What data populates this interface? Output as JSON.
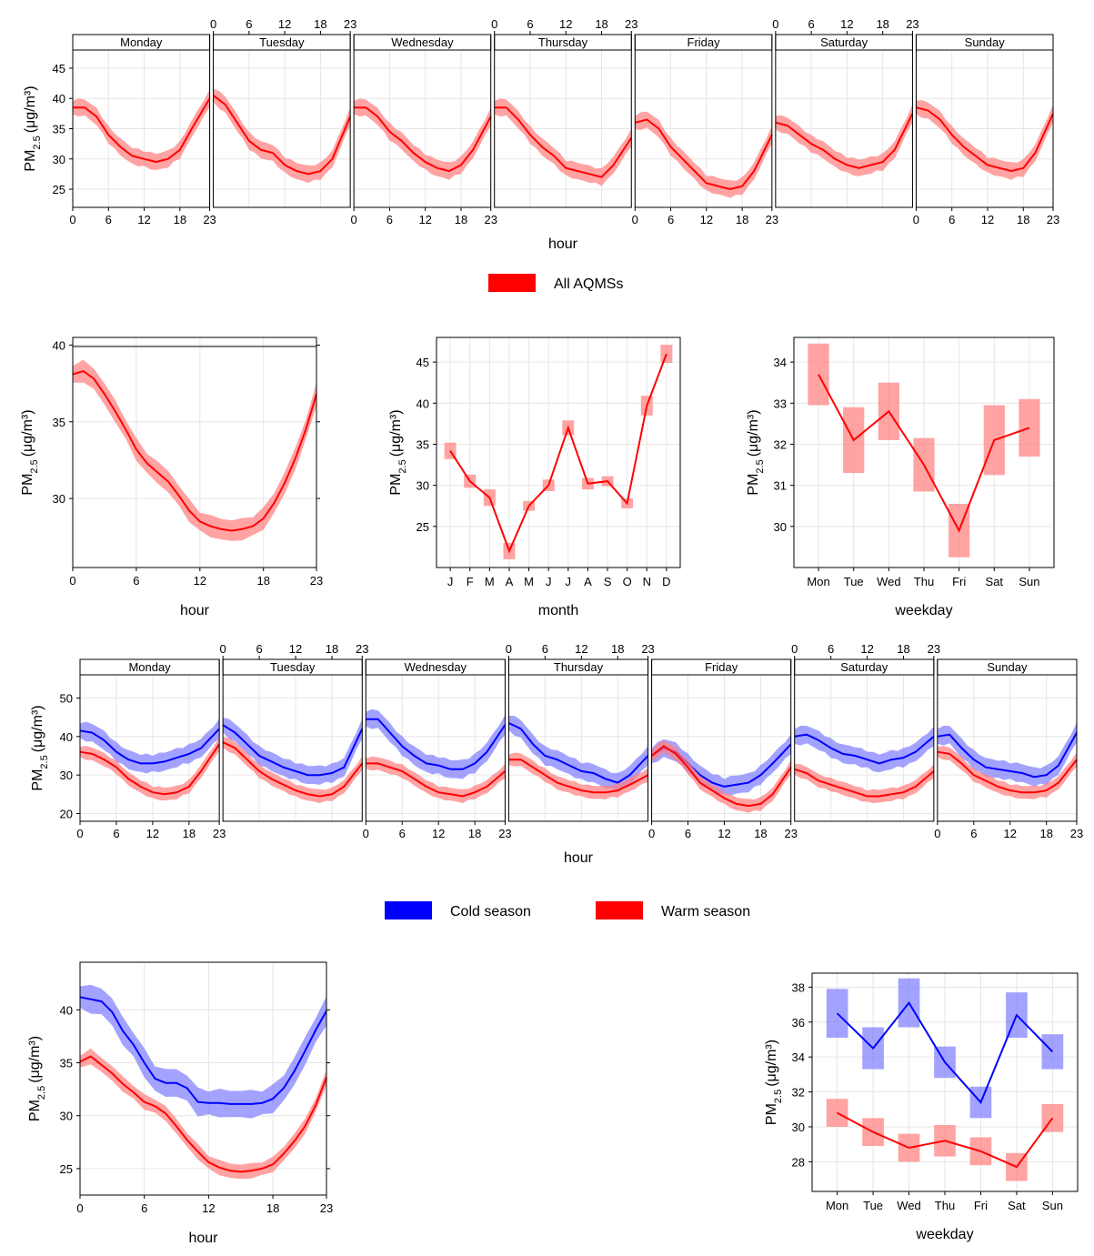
{
  "colors": {
    "red_line": "#ff0000",
    "red_band": "#ff8080",
    "blue_line": "#0000ff",
    "blue_band": "#8080ff",
    "grid": "#e6e6e6"
  },
  "legend_top": {
    "items": [
      {
        "label": "All AQMSs",
        "color": "#ff0000"
      }
    ]
  },
  "legend_mid": {
    "items": [
      {
        "label": "Cold season",
        "color": "#0000ff"
      },
      {
        "label": "Warm season",
        "color": "#ff0000"
      }
    ]
  },
  "chart_data": [
    {
      "type": "line",
      "panel": "hour-weekday-all",
      "xlabel": "hour",
      "ylabel": "PM2.5 (μg/m³)",
      "x_ticks": [
        0,
        6,
        12,
        18,
        23
      ],
      "y_ticks": [
        25,
        30,
        35,
        40,
        45
      ],
      "ylim": [
        22,
        48
      ],
      "days": [
        "Monday",
        "Tuesday",
        "Wednesday",
        "Thursday",
        "Friday",
        "Saturday",
        "Sunday"
      ],
      "series": [
        {
          "name": "All AQMSs",
          "color": "#ff0000",
          "points_x": [
            0,
            2,
            4,
            6,
            8,
            10,
            12,
            14,
            16,
            18,
            20,
            23
          ],
          "values": [
            [
              38.5,
              38.5,
              37,
              34,
              32,
              30.5,
              30,
              29.5,
              30,
              31.5,
              35,
              40
            ],
            [
              40.5,
              39,
              36,
              33,
              31.5,
              31,
              29,
              28,
              27.5,
              28,
              30,
              37
            ],
            [
              38.5,
              38.5,
              37,
              34.5,
              33,
              31,
              29.5,
              28.5,
              28,
              29,
              31.5,
              37
            ],
            [
              38.5,
              38.5,
              36.5,
              34,
              32,
              30.5,
              28.5,
              28,
              27.5,
              27,
              29,
              33.5
            ],
            [
              36,
              36.5,
              35,
              32,
              30,
              28,
              26,
              25.5,
              25,
              25.5,
              28,
              34
            ],
            [
              36,
              35.5,
              34,
              32.5,
              31.5,
              30,
              29,
              28.5,
              29,
              29.5,
              31.5,
              37.5
            ],
            [
              38.5,
              38,
              36.5,
              34,
              32,
              30.5,
              29,
              28.5,
              28,
              28.5,
              31,
              37.5
            ]
          ],
          "ci": 2.6
        }
      ]
    },
    {
      "type": "line",
      "panel": "hour-all",
      "xlabel": "hour",
      "ylabel": "PM2.5 (μg/m³)",
      "x_ticks": [
        0,
        6,
        12,
        18,
        23
      ],
      "y_ticks": [
        30,
        35,
        40
      ],
      "ylim": [
        25.5,
        40.5
      ],
      "series": [
        {
          "name": "All AQMSs",
          "color": "#ff0000",
          "x": [
            0,
            1,
            2,
            3,
            4,
            5,
            6,
            7,
            8,
            9,
            10,
            11,
            12,
            13,
            14,
            15,
            16,
            17,
            18,
            19,
            20,
            21,
            22,
            23
          ],
          "values": [
            38.1,
            38.3,
            37.8,
            36.8,
            35.7,
            34.5,
            33.2,
            32.3,
            31.7,
            31.1,
            30.2,
            29.2,
            28.5,
            28.2,
            28.0,
            27.9,
            28.0,
            28.2,
            28.7,
            29.7,
            31.0,
            32.6,
            34.5,
            36.8
          ],
          "ci": 1.3
        }
      ]
    },
    {
      "type": "line",
      "panel": "month-all",
      "xlabel": "month",
      "ylabel": "PM2.5 (μg/m³)",
      "categories": [
        "J",
        "F",
        "M",
        "A",
        "M",
        "J",
        "J",
        "A",
        "S",
        "O",
        "N",
        "D"
      ],
      "y_ticks": [
        25,
        30,
        35,
        40,
        45
      ],
      "ylim": [
        20,
        48
      ],
      "series": [
        {
          "name": "All AQMSs",
          "color": "#ff0000",
          "values": [
            34.2,
            30.5,
            28.5,
            22.0,
            27.5,
            30.0,
            37.0,
            30.2,
            30.5,
            27.8,
            39.7,
            46.0
          ],
          "ci": [
            1.0,
            0.8,
            1.0,
            1.0,
            0.6,
            0.7,
            0.9,
            0.7,
            0.6,
            0.6,
            1.2,
            1.1
          ]
        }
      ]
    },
    {
      "type": "line",
      "panel": "weekday-all",
      "xlabel": "weekday",
      "ylabel": "PM2.5 (μg/m³)",
      "categories": [
        "Mon",
        "Tue",
        "Wed",
        "Thu",
        "Fri",
        "Sat",
        "Sun"
      ],
      "y_ticks": [
        30,
        31,
        32,
        33,
        34
      ],
      "ylim": [
        29,
        34.6
      ],
      "series": [
        {
          "name": "All AQMSs",
          "color": "#ff0000",
          "values": [
            33.7,
            32.1,
            32.8,
            31.5,
            29.9,
            32.1,
            32.4
          ],
          "ci": [
            0.75,
            0.8,
            0.7,
            0.65,
            0.65,
            0.85,
            0.7
          ]
        }
      ]
    },
    {
      "type": "line",
      "panel": "hour-weekday-season",
      "xlabel": "hour",
      "ylabel": "PM2.5 (μg/m³)",
      "x_ticks": [
        0,
        6,
        12,
        18,
        23
      ],
      "y_ticks": [
        20,
        30,
        40,
        50
      ],
      "ylim": [
        18,
        56
      ],
      "days": [
        "Monday",
        "Tuesday",
        "Wednesday",
        "Thursday",
        "Friday",
        "Saturday",
        "Sunday"
      ],
      "series": [
        {
          "name": "Cold season",
          "color": "#0000ff",
          "points_x": [
            0,
            2,
            4,
            6,
            8,
            10,
            12,
            14,
            16,
            18,
            20,
            23
          ],
          "values": [
            [
              41.5,
              41,
              39,
              36,
              34,
              33,
              33,
              33.5,
              34.5,
              35.5,
              37,
              42
            ],
            [
              43,
              41,
              38,
              35,
              33.5,
              32,
              31,
              30,
              30,
              30.5,
              32,
              42
            ],
            [
              44.5,
              44.5,
              41,
              37.5,
              35,
              33,
              32.5,
              31.5,
              31.5,
              33,
              36,
              43
            ],
            [
              43.5,
              42,
              38,
              35,
              34,
              32.5,
              31,
              30.5,
              29,
              28,
              30,
              35
            ],
            [
              35,
              37,
              36,
              33,
              30,
              28,
              27,
              27.5,
              28,
              30,
              33,
              38
            ],
            [
              40,
              40.5,
              39,
              37,
              35.5,
              35,
              34,
              33,
              34,
              34.5,
              36,
              40
            ],
            [
              40,
              40.5,
              37,
              34,
              32,
              31.5,
              31,
              30.5,
              29.5,
              30,
              32.5,
              41
            ]
          ],
          "ci": 4.5
        },
        {
          "name": "Warm season",
          "color": "#ff0000",
          "points_x": [
            0,
            2,
            4,
            6,
            8,
            10,
            12,
            14,
            16,
            18,
            20,
            23
          ],
          "values": [
            [
              36,
              35.5,
              34,
              32,
              29,
              27,
              25.5,
              25,
              25.5,
              27,
              31,
              38
            ],
            [
              38.5,
              37,
              34,
              31,
              29,
              27.5,
              26,
              25,
              24.5,
              25,
              27,
              33
            ],
            [
              33,
              33,
              32,
              31,
              29,
              27,
              25.5,
              25,
              24.5,
              25.5,
              27,
              31
            ],
            [
              34,
              34,
              32,
              30,
              28,
              27,
              26,
              25.5,
              25.5,
              26,
              27.5,
              30
            ],
            [
              35,
              37.5,
              35.5,
              32,
              28,
              26,
              24,
              22.5,
              22,
              22.5,
              25,
              32
            ],
            [
              31.5,
              30.5,
              28.5,
              27.5,
              26.5,
              25.5,
              24.5,
              24.5,
              25,
              25.5,
              27,
              31
            ],
            [
              36,
              35.5,
              33,
              30,
              28.5,
              27,
              26,
              25.5,
              25.5,
              26,
              28,
              34
            ]
          ],
          "ci": 3.2
        }
      ]
    },
    {
      "type": "line",
      "panel": "hour-season",
      "xlabel": "hour",
      "ylabel": "PM2.5 (μg/m³)",
      "x_ticks": [
        0,
        6,
        12,
        18,
        23
      ],
      "y_ticks": [
        25,
        30,
        35,
        40
      ],
      "ylim": [
        22.5,
        44.5
      ],
      "series": [
        {
          "name": "Cold season",
          "color": "#0000ff",
          "x": [
            0,
            1,
            2,
            3,
            4,
            5,
            6,
            7,
            8,
            9,
            10,
            11,
            12,
            13,
            14,
            15,
            16,
            17,
            18,
            19,
            20,
            21,
            22,
            23
          ],
          "values": [
            41.2,
            41.0,
            40.8,
            39.8,
            38.0,
            36.7,
            35.0,
            33.5,
            33.1,
            33.1,
            32.6,
            31.3,
            31.2,
            31.2,
            31.1,
            31.1,
            31.1,
            31.2,
            31.6,
            32.6,
            34.2,
            36.1,
            38.1,
            39.9
          ],
          "ci": 2.4
        },
        {
          "name": "Warm season",
          "color": "#ff0000",
          "x": [
            0,
            1,
            2,
            3,
            4,
            5,
            6,
            7,
            8,
            9,
            10,
            11,
            12,
            13,
            14,
            15,
            16,
            17,
            18,
            19,
            20,
            21,
            22,
            23
          ],
          "values": [
            35.1,
            35.6,
            34.8,
            34.0,
            33.0,
            32.2,
            31.3,
            30.9,
            30.2,
            29.0,
            27.7,
            26.6,
            25.6,
            25.1,
            24.8,
            24.7,
            24.8,
            25.0,
            25.4,
            26.4,
            27.6,
            29.0,
            31.0,
            33.6
          ],
          "ci": 1.3
        }
      ]
    },
    {
      "type": "line",
      "panel": "weekday-season",
      "xlabel": "weekday",
      "ylabel": "PM2.5 (μg/m³)",
      "categories": [
        "Mon",
        "Tue",
        "Wed",
        "Thu",
        "Fri",
        "Sat",
        "Sun"
      ],
      "y_ticks": [
        28,
        30,
        32,
        34,
        36,
        38
      ],
      "ylim": [
        26.3,
        38.8
      ],
      "series": [
        {
          "name": "Cold season",
          "color": "#0000ff",
          "values": [
            36.5,
            34.5,
            37.1,
            33.7,
            31.4,
            36.4,
            34.3
          ],
          "ci": [
            1.4,
            1.2,
            1.4,
            0.9,
            0.9,
            1.3,
            1.0
          ]
        },
        {
          "name": "Warm season",
          "color": "#ff0000",
          "values": [
            30.8,
            29.7,
            28.8,
            29.2,
            28.6,
            27.7,
            30.5
          ],
          "ci": [
            0.8,
            0.8,
            0.8,
            0.9,
            0.8,
            0.8,
            0.8
          ]
        }
      ]
    }
  ]
}
